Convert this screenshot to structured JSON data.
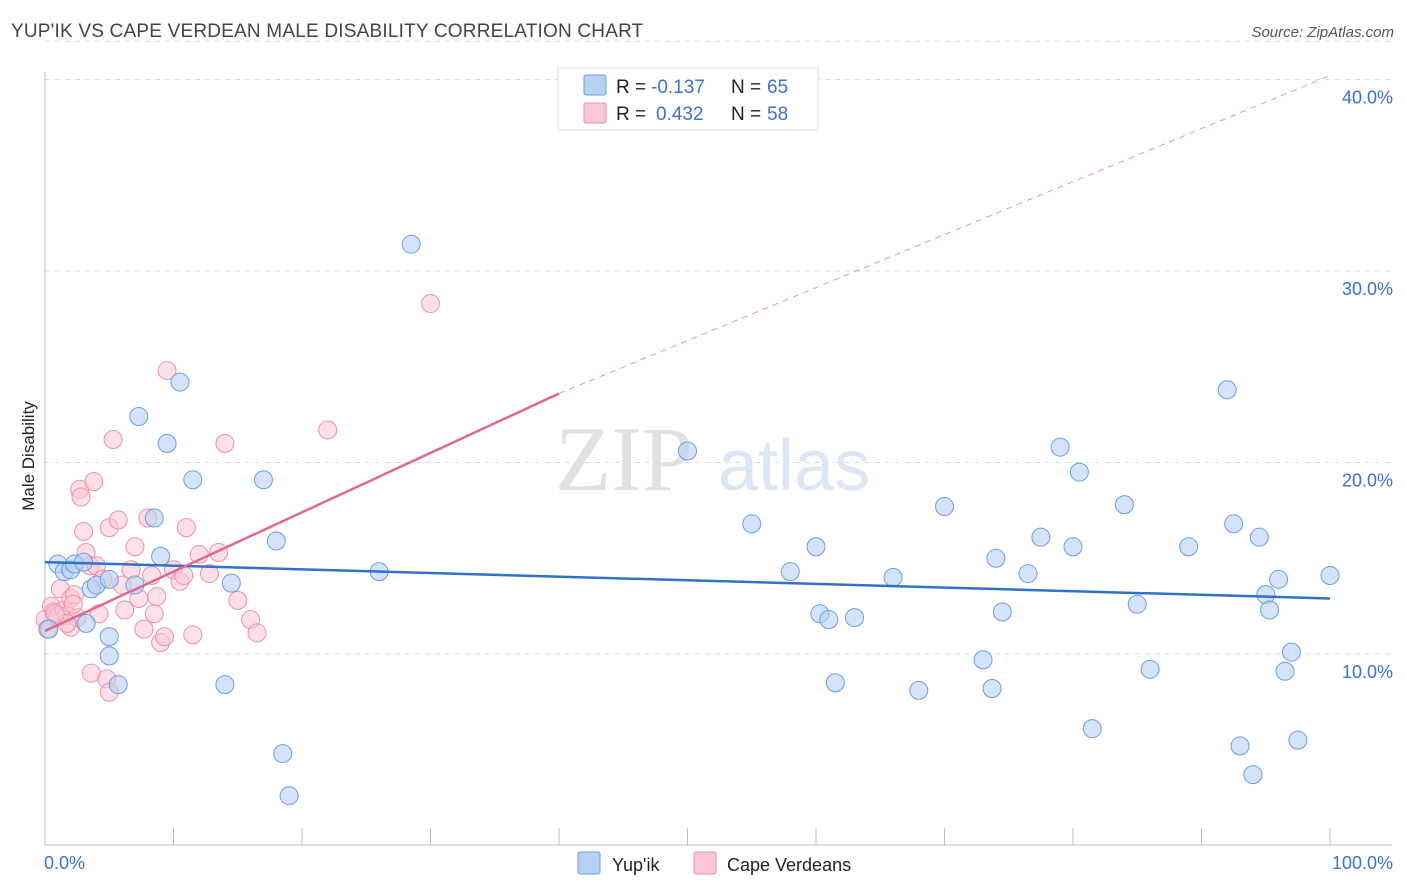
{
  "chart_data": {
    "type": "scatter",
    "title": "YUP'IK VS CAPE VERDEAN MALE DISABILITY CORRELATION CHART",
    "source": "Source: ZipAtlas.com",
    "ylabel": "Male Disability",
    "xlim": [
      0,
      100
    ],
    "ylim": [
      0,
      42
    ],
    "x_tick_labels": [
      "0.0%",
      "100.0%"
    ],
    "y_ticks": [
      10,
      20,
      30,
      40
    ],
    "y_tick_labels": [
      "10.0%",
      "20.0%",
      "30.0%",
      "40.0%"
    ],
    "watermark": {
      "zip": "ZIP",
      "atlas": "atlas"
    },
    "colors": {
      "yupik_fill": "#b7d1f4",
      "yupik_stroke": "#6a9ee0",
      "yupik_line": "#2f72c8",
      "cape_fill": "#f9c6d4",
      "cape_stroke": "#ee90ab",
      "cape_line": "#e06890",
      "grid": "#dddddd",
      "axis_text": "#3a73c9"
    },
    "legend": {
      "rows": [
        {
          "r_label": "R = ",
          "r_value": "-0.137",
          "n_label": "N = ",
          "n_value": "65"
        },
        {
          "r_label": "R = ",
          "r_value": "0.432",
          "n_label": "N = ",
          "n_value": "58"
        }
      ]
    },
    "series": [
      {
        "name": "Yup'ik",
        "trend": {
          "x": [
            0,
            100
          ],
          "y": [
            14.8,
            12.9
          ]
        },
        "points": [
          [
            0.3,
            11.3
          ],
          [
            1,
            14.7
          ],
          [
            1.5,
            14.3
          ],
          [
            2,
            14.4
          ],
          [
            2.3,
            14.7
          ],
          [
            3,
            14.8
          ],
          [
            3.2,
            11.6
          ],
          [
            3.6,
            13.4
          ],
          [
            4,
            13.6
          ],
          [
            5,
            13.9
          ],
          [
            5,
            10.9
          ],
          [
            5,
            9.9
          ],
          [
            5.7,
            8.4
          ],
          [
            7,
            13.6
          ],
          [
            7.3,
            22.4
          ],
          [
            8.5,
            17.1
          ],
          [
            9,
            15.1
          ],
          [
            9.5,
            21.0
          ],
          [
            10.5,
            24.2
          ],
          [
            11.5,
            19.1
          ],
          [
            14,
            8.4
          ],
          [
            14.5,
            13.7
          ],
          [
            17,
            19.1
          ],
          [
            18,
            15.9
          ],
          [
            18.5,
            4.8
          ],
          [
            19,
            2.6
          ],
          [
            26,
            14.3
          ],
          [
            28.5,
            31.4
          ],
          [
            50,
            20.6
          ],
          [
            55,
            16.8
          ],
          [
            58,
            14.3
          ],
          [
            60,
            15.6
          ],
          [
            60.3,
            12.1
          ],
          [
            61,
            11.8
          ],
          [
            61.5,
            8.5
          ],
          [
            63,
            11.9
          ],
          [
            66,
            14.0
          ],
          [
            68,
            8.1
          ],
          [
            70,
            17.7
          ],
          [
            73,
            9.7
          ],
          [
            73.7,
            8.2
          ],
          [
            74,
            15.0
          ],
          [
            74.5,
            12.2
          ],
          [
            76.5,
            14.2
          ],
          [
            77.5,
            16.1
          ],
          [
            79,
            20.8
          ],
          [
            80,
            15.6
          ],
          [
            80.5,
            19.5
          ],
          [
            81.5,
            6.1
          ],
          [
            84,
            17.8
          ],
          [
            85,
            12.6
          ],
          [
            86,
            9.2
          ],
          [
            89,
            15.6
          ],
          [
            92,
            23.8
          ],
          [
            92.5,
            16.8
          ],
          [
            93,
            5.2
          ],
          [
            94,
            3.7
          ],
          [
            94.5,
            16.1
          ],
          [
            95,
            13.1
          ],
          [
            95.3,
            12.3
          ],
          [
            96,
            13.9
          ],
          [
            96.5,
            9.1
          ],
          [
            97,
            10.1
          ],
          [
            97.5,
            5.5
          ],
          [
            100,
            14.1
          ]
        ]
      },
      {
        "name": "Cape Verdeans",
        "trend": {
          "x": [
            0,
            40
          ],
          "y": [
            11.2,
            23.6
          ],
          "extend_to_x": 100,
          "extend_y": 40.2
        },
        "points": [
          [
            0,
            11.8
          ],
          [
            0.2,
            11.3
          ],
          [
            0.5,
            12.5
          ],
          [
            0.7,
            12.2
          ],
          [
            1,
            11.9
          ],
          [
            1,
            12.0
          ],
          [
            1.2,
            13.4
          ],
          [
            1.5,
            12.3
          ],
          [
            1.7,
            12.0
          ],
          [
            2,
            12.9
          ],
          [
            2,
            11.4
          ],
          [
            2.3,
            13.1
          ],
          [
            2.5,
            11.9
          ],
          [
            2.7,
            18.6
          ],
          [
            2.8,
            18.2
          ],
          [
            3,
            16.4
          ],
          [
            3.2,
            15.3
          ],
          [
            3.5,
            14.6
          ],
          [
            3.6,
            9.0
          ],
          [
            3.8,
            19.0
          ],
          [
            4,
            14.6
          ],
          [
            4.2,
            12.1
          ],
          [
            4.5,
            13.9
          ],
          [
            4.8,
            8.7
          ],
          [
            5,
            8.0
          ],
          [
            5,
            16.6
          ],
          [
            5.3,
            21.2
          ],
          [
            5.7,
            17.0
          ],
          [
            6,
            13.6
          ],
          [
            6.2,
            12.3
          ],
          [
            6.7,
            14.4
          ],
          [
            7,
            15.6
          ],
          [
            7.3,
            12.9
          ],
          [
            7.7,
            11.3
          ],
          [
            8,
            17.1
          ],
          [
            8.3,
            14.1
          ],
          [
            8.5,
            12.1
          ],
          [
            8.7,
            13.0
          ],
          [
            9,
            10.6
          ],
          [
            9.3,
            10.9
          ],
          [
            9.5,
            24.8
          ],
          [
            10,
            14.4
          ],
          [
            10.5,
            13.8
          ],
          [
            10.8,
            14.1
          ],
          [
            11,
            16.6
          ],
          [
            11.5,
            11.0
          ],
          [
            12,
            15.2
          ],
          [
            12.8,
            14.2
          ],
          [
            13.5,
            15.3
          ],
          [
            14,
            21.0
          ],
          [
            15,
            12.8
          ],
          [
            16,
            11.8
          ],
          [
            16.5,
            11.1
          ],
          [
            22,
            21.7
          ],
          [
            30,
            28.3
          ],
          [
            1.7,
            11.6
          ],
          [
            2.2,
            12.6
          ],
          [
            0.8,
            12.1
          ]
        ]
      }
    ]
  },
  "bottom_legend": {
    "yupik": "Yup'ik",
    "cape": "Cape Verdeans"
  }
}
